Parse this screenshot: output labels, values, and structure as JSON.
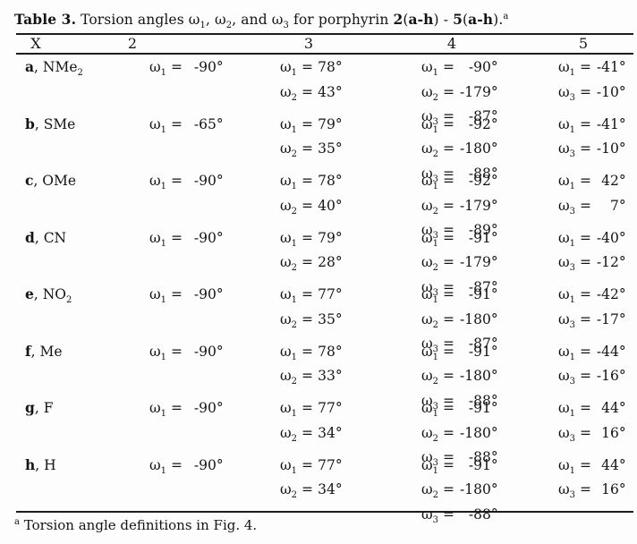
{
  "page": {
    "background": "#fdfdfd",
    "text_color": "#141414",
    "rule_color": "#1c1c1c"
  },
  "symbols": {
    "omega": "ω",
    "equals": "=",
    "degree": "°"
  },
  "title": {
    "segments": [
      {
        "text": "Table 3.",
        "bold": true
      },
      {
        "text": " Torsion angles ω"
      },
      {
        "text": "1",
        "sub": true
      },
      {
        "text": ", ω"
      },
      {
        "text": "2",
        "sub": true
      },
      {
        "text": ", and ω"
      },
      {
        "text": "3",
        "sub": true
      },
      {
        "text": " for porphyrin "
      },
      {
        "text": "2",
        "bold": true
      },
      {
        "text": "("
      },
      {
        "text": "a-h",
        "bold": true
      },
      {
        "text": ") - "
      },
      {
        "text": "5",
        "bold": true
      },
      {
        "text": "("
      },
      {
        "text": "a-h",
        "bold": true
      },
      {
        "text": ")."
      },
      {
        "text": "a",
        "sup": true
      }
    ]
  },
  "table": {
    "headers": [
      "X",
      "2",
      "3",
      "4",
      "5"
    ],
    "rows": [
      {
        "label": {
          "letter": "a",
          "rest": ", NMe",
          "sub": "2"
        },
        "cols": {
          "c2": [
            {
              "sub": "1",
              "num": "-90"
            }
          ],
          "c3": [
            {
              "sub": "1",
              "num": "78"
            },
            {
              "sub": "2",
              "num": "43"
            }
          ],
          "c4": [
            {
              "sub": "1",
              "num": "-90"
            },
            {
              "sub": "2",
              "num": "-179"
            },
            {
              "sub": "3",
              "num": "-87"
            }
          ],
          "c5": [
            {
              "sub": "1",
              "num": "-41"
            },
            {
              "sub": "3",
              "num": "-10"
            }
          ]
        }
      },
      {
        "label": {
          "letter": "b",
          "rest": ", SMe",
          "sub": ""
        },
        "cols": {
          "c2": [
            {
              "sub": "1",
              "num": "-65"
            }
          ],
          "c3": [
            {
              "sub": "1",
              "num": "79"
            },
            {
              "sub": "2",
              "num": "35"
            }
          ],
          "c4": [
            {
              "sub": "1",
              "num": "-92"
            },
            {
              "sub": "2",
              "num": "-180"
            },
            {
              "sub": "3",
              "num": "-88"
            }
          ],
          "c5": [
            {
              "sub": "1",
              "num": "-41"
            },
            {
              "sub": "3",
              "num": "-10"
            }
          ]
        }
      },
      {
        "label": {
          "letter": "c",
          "rest": ", OMe",
          "sub": ""
        },
        "cols": {
          "c2": [
            {
              "sub": "1",
              "num": "-90"
            }
          ],
          "c3": [
            {
              "sub": "1",
              "num": "78"
            },
            {
              "sub": "2",
              "num": "40"
            }
          ],
          "c4": [
            {
              "sub": "1",
              "num": "-92"
            },
            {
              "sub": "2",
              "num": "-179"
            },
            {
              "sub": "3",
              "num": "-89"
            }
          ],
          "c5": [
            {
              "sub": "1",
              "num": "42"
            },
            {
              "sub": "3",
              "num": "7"
            }
          ]
        }
      },
      {
        "label": {
          "letter": "d",
          "rest": ", CN",
          "sub": ""
        },
        "cols": {
          "c2": [
            {
              "sub": "1",
              "num": "-90"
            }
          ],
          "c3": [
            {
              "sub": "1",
              "num": "79"
            },
            {
              "sub": "2",
              "num": "28"
            }
          ],
          "c4": [
            {
              "sub": "1",
              "num": "-91"
            },
            {
              "sub": "2",
              "num": "-179"
            },
            {
              "sub": "3",
              "num": "-87"
            }
          ],
          "c5": [
            {
              "sub": "1",
              "num": "-40"
            },
            {
              "sub": "3",
              "num": "-12"
            }
          ]
        }
      },
      {
        "label": {
          "letter": "e",
          "rest": ", NO",
          "sub": "2"
        },
        "cols": {
          "c2": [
            {
              "sub": "1",
              "num": "-90"
            }
          ],
          "c3": [
            {
              "sub": "1",
              "num": "77"
            },
            {
              "sub": "2",
              "num": "35"
            }
          ],
          "c4": [
            {
              "sub": "1",
              "num": "-91"
            },
            {
              "sub": "2",
              "num": "-180"
            },
            {
              "sub": "3",
              "num": "-87"
            }
          ],
          "c5": [
            {
              "sub": "1",
              "num": "-42"
            },
            {
              "sub": "3",
              "num": "-17"
            }
          ]
        }
      },
      {
        "label": {
          "letter": "f",
          "rest": ", Me",
          "sub": ""
        },
        "cols": {
          "c2": [
            {
              "sub": "1",
              "num": "-90"
            }
          ],
          "c3": [
            {
              "sub": "1",
              "num": "78"
            },
            {
              "sub": "2",
              "num": "33"
            }
          ],
          "c4": [
            {
              "sub": "1",
              "num": "-91"
            },
            {
              "sub": "2",
              "num": "-180"
            },
            {
              "sub": "3",
              "num": "-88"
            }
          ],
          "c5": [
            {
              "sub": "1",
              "num": "-44"
            },
            {
              "sub": "3",
              "num": "-16"
            }
          ]
        }
      },
      {
        "label": {
          "letter": "g",
          "rest": ", F",
          "sub": ""
        },
        "cols": {
          "c2": [
            {
              "sub": "1",
              "num": "-90"
            }
          ],
          "c3": [
            {
              "sub": "1",
              "num": "77"
            },
            {
              "sub": "2",
              "num": "34"
            }
          ],
          "c4": [
            {
              "sub": "1",
              "num": "-91"
            },
            {
              "sub": "2",
              "num": "-180"
            },
            {
              "sub": "3",
              "num": "-88"
            }
          ],
          "c5": [
            {
              "sub": "1",
              "num": "44"
            },
            {
              "sub": "3",
              "num": "16"
            }
          ]
        }
      },
      {
        "label": {
          "letter": "h",
          "rest": ", H",
          "sub": ""
        },
        "cols": {
          "c2": [
            {
              "sub": "1",
              "num": "-90"
            }
          ],
          "c3": [
            {
              "sub": "1",
              "num": "77"
            },
            {
              "sub": "2",
              "num": "34"
            }
          ],
          "c4": [
            {
              "sub": "1",
              "num": "-91"
            },
            {
              "sub": "2",
              "num": "-180"
            },
            {
              "sub": "3",
              "num": "-88"
            }
          ],
          "c5": [
            {
              "sub": "1",
              "num": "44"
            },
            {
              "sub": "3",
              "num": "16"
            }
          ]
        }
      }
    ]
  },
  "footnote": {
    "segments": [
      {
        "text": "a",
        "sup": true
      },
      {
        "text": " Torsion angle definitions in Fig. 4."
      }
    ]
  }
}
